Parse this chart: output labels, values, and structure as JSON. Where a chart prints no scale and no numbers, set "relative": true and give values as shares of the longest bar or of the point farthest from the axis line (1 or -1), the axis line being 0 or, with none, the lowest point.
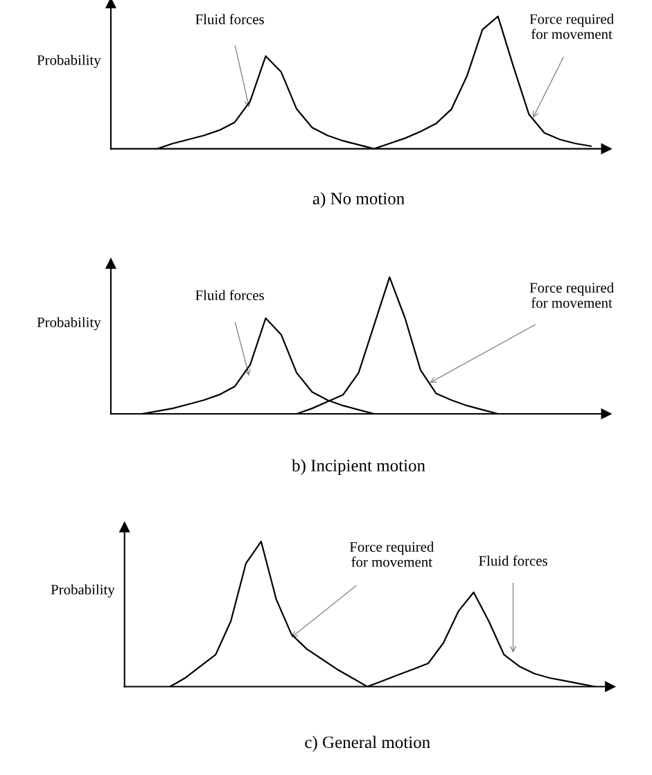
{
  "chart_data": [
    {
      "type": "line",
      "title": "a) No motion",
      "ylabel": "Probability",
      "relative": true,
      "line_style": "solid",
      "categories": [
        null,
        null,
        null,
        null,
        null,
        null,
        null,
        null,
        null,
        null,
        null,
        null,
        null,
        null,
        null,
        null,
        null,
        null,
        null,
        null,
        null,
        null,
        null,
        null,
        null,
        null,
        null,
        null,
        null,
        null,
        null,
        null,
        null
      ],
      "series": [
        {
          "color": "#000000",
          "values": [
            null,
            null,
            null,
            0,
            0.04,
            0.07,
            0.1,
            0.14,
            0.2,
            0.36,
            0.7,
            0.58,
            0.3,
            0.16,
            0.1,
            0.06,
            0.03,
            0,
            null,
            null,
            null,
            null,
            null,
            null,
            null,
            null,
            null,
            null,
            null,
            null,
            null,
            null,
            null
          ]
        },
        {
          "color": "#000000",
          "values": [
            null,
            null,
            null,
            null,
            null,
            null,
            null,
            null,
            null,
            null,
            null,
            null,
            null,
            null,
            null,
            null,
            null,
            0,
            0.04,
            0.08,
            0.13,
            0.19,
            0.3,
            0.55,
            0.9,
            1,
            0.62,
            0.26,
            0.12,
            0.07,
            0.04,
            0.02,
            null
          ]
        }
      ],
      "annotations": [
        "Fluid forces",
        "Force required\nfor movement"
      ]
    },
    {
      "type": "line",
      "title": "b) Incipient motion",
      "ylabel": "Probability",
      "relative": true,
      "line_style": "solid",
      "categories": [
        null,
        null,
        null,
        null,
        null,
        null,
        null,
        null,
        null,
        null,
        null,
        null,
        null,
        null,
        null,
        null,
        null,
        null,
        null,
        null,
        null,
        null,
        null,
        null,
        null,
        null,
        null,
        null,
        null,
        null,
        null,
        null,
        null
      ],
      "series": [
        {
          "color": "#000000",
          "values": [
            null,
            null,
            0,
            0.02,
            0.04,
            0.07,
            0.1,
            0.14,
            0.2,
            0.36,
            0.7,
            0.58,
            0.3,
            0.16,
            0.1,
            0.06,
            0.03,
            0,
            null,
            null,
            null,
            null,
            null,
            null,
            null,
            null,
            null,
            null,
            null,
            null,
            null,
            null,
            null
          ]
        },
        {
          "color": "#000000",
          "values": [
            null,
            null,
            null,
            null,
            null,
            null,
            null,
            null,
            null,
            null,
            null,
            null,
            0,
            0.04,
            0.09,
            0.14,
            0.3,
            0.65,
            1,
            0.7,
            0.32,
            0.15,
            0.1,
            0.06,
            0.03,
            0,
            null,
            null,
            null,
            null,
            null,
            null,
            null
          ]
        }
      ],
      "annotations": [
        "Fluid forces",
        "Force required\nfor movement"
      ]
    },
    {
      "type": "line",
      "title": "c) General motion",
      "ylabel": "Probability",
      "relative": true,
      "line_style": "solid",
      "categories": [
        null,
        null,
        null,
        null,
        null,
        null,
        null,
        null,
        null,
        null,
        null,
        null,
        null,
        null,
        null,
        null,
        null,
        null,
        null,
        null,
        null,
        null,
        null,
        null,
        null,
        null,
        null,
        null,
        null,
        null,
        null,
        null,
        null
      ],
      "series": [
        {
          "color": "#000000",
          "values": [
            null,
            null,
            null,
            0,
            0.06,
            0.14,
            0.22,
            0.45,
            0.85,
            1,
            0.6,
            0.36,
            0.26,
            0.19,
            0.12,
            0.06,
            0,
            null,
            null,
            null,
            null,
            null,
            null,
            null,
            null,
            null,
            null,
            null,
            null,
            null,
            null,
            null,
            null
          ]
        },
        {
          "color": "#000000",
          "values": [
            null,
            null,
            null,
            null,
            null,
            null,
            null,
            null,
            null,
            null,
            null,
            null,
            null,
            null,
            null,
            null,
            0,
            0.04,
            0.08,
            0.12,
            0.16,
            0.3,
            0.52,
            0.65,
            0.45,
            0.22,
            0.14,
            0.09,
            0.06,
            0.04,
            0.02,
            0,
            null
          ]
        }
      ],
      "annotations": [
        "Force required\nfor movement",
        "Fluid forces"
      ]
    }
  ]
}
